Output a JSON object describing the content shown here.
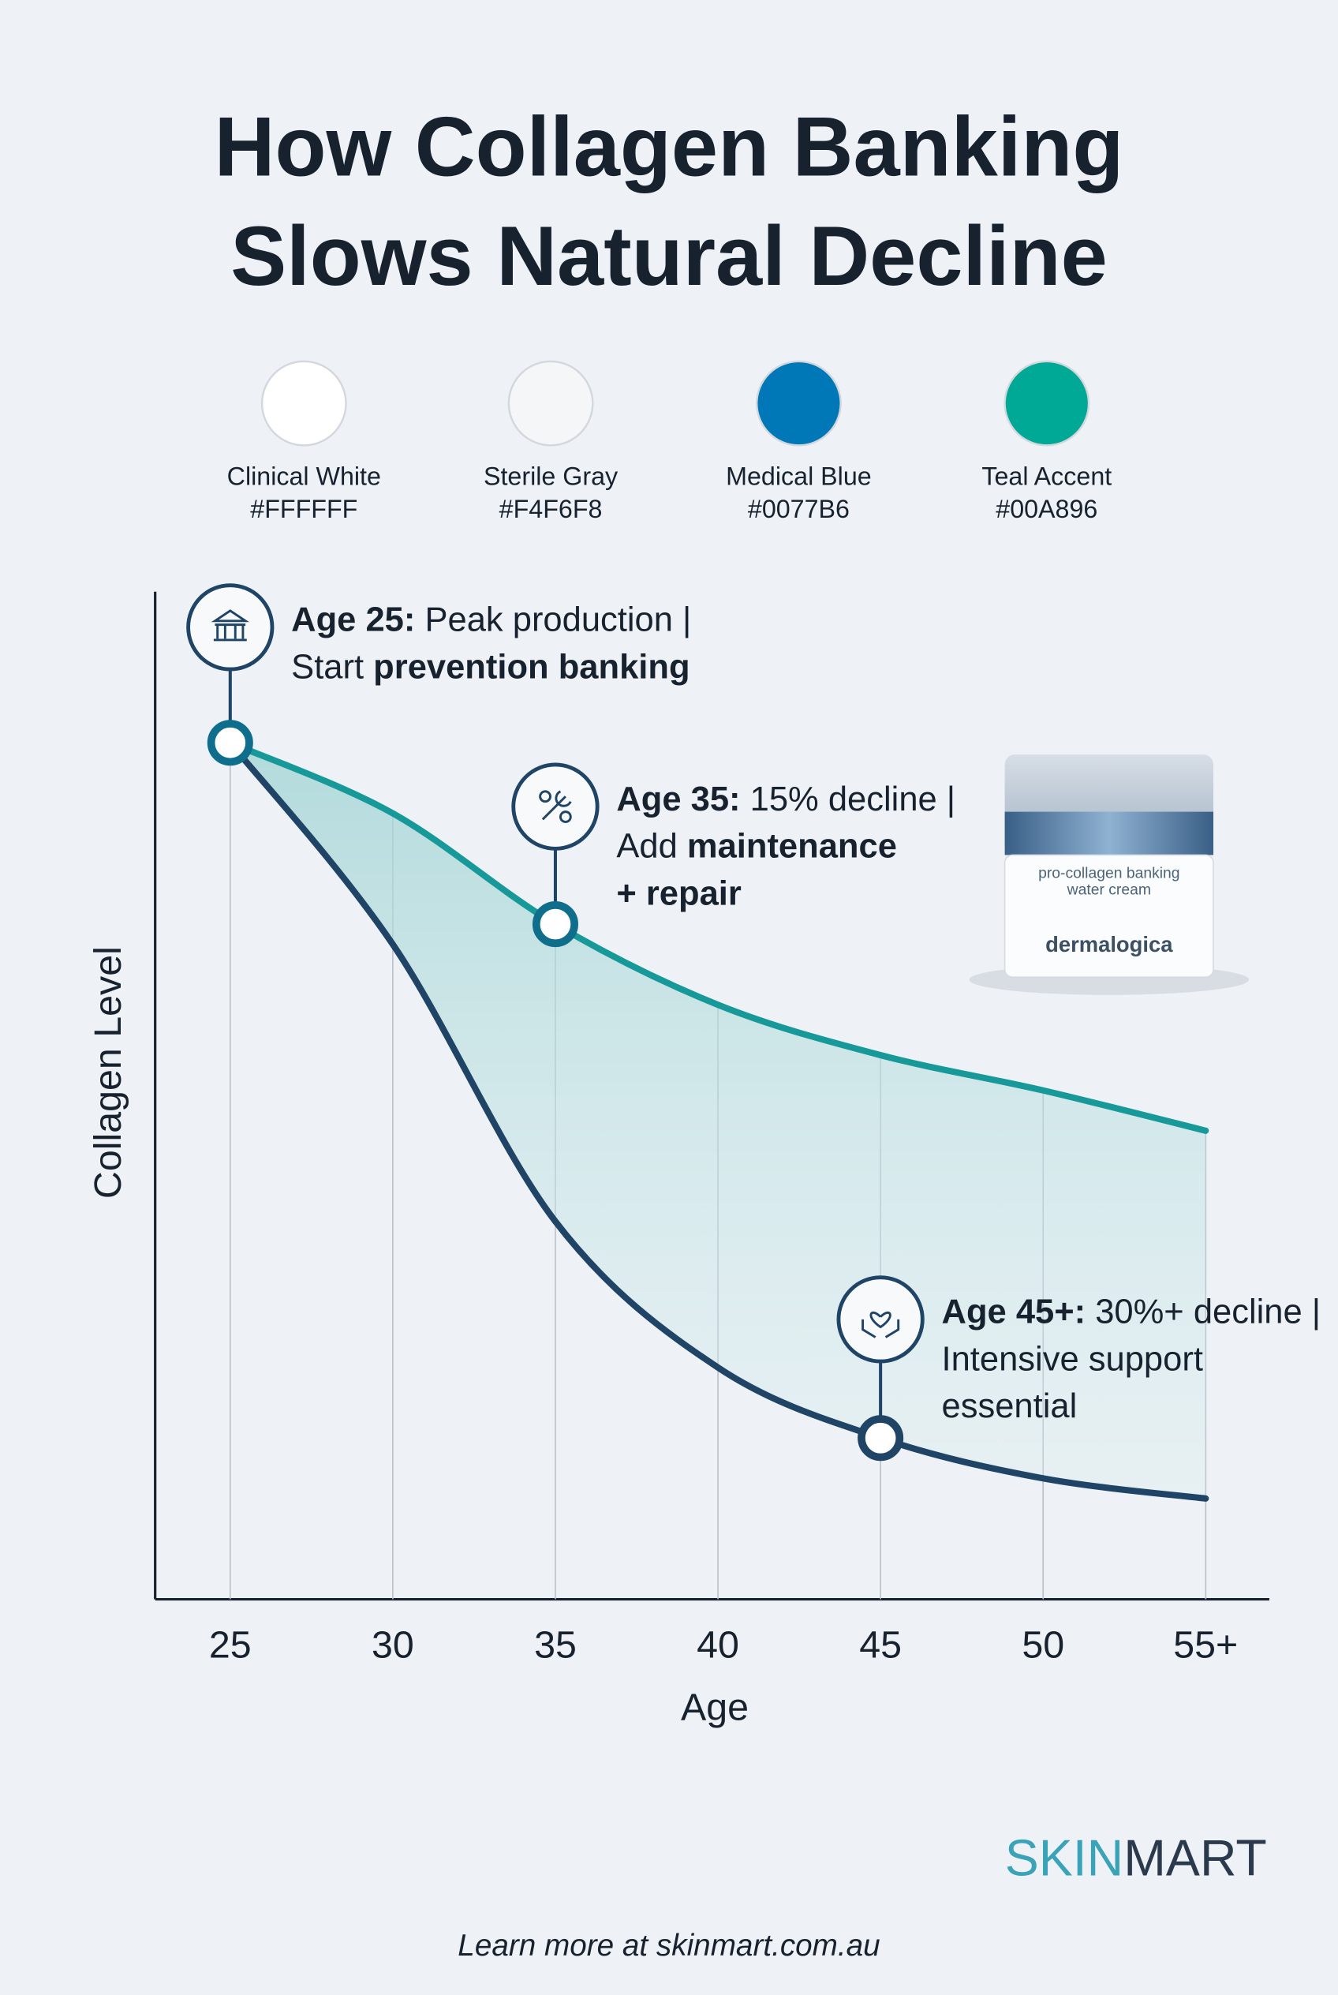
{
  "chart_data": {
    "type": "line",
    "title": [
      "How Collagen Banking",
      "Slows Natural Decline"
    ],
    "palette": [
      {
        "name": "Clinical White",
        "hex": "#FFFFFF"
      },
      {
        "name": "Sterile Gray",
        "hex": "#F4F6F8"
      },
      {
        "name": "Medical Blue",
        "hex": "#0077B6"
      },
      {
        "name": "Teal Accent",
        "hex": "#00A896"
      }
    ],
    "x_label": "Age",
    "y_label": "Collagen Level",
    "categories": [
      "25",
      "30",
      "35",
      "40",
      "45",
      "50",
      "55+"
    ],
    "series": [
      {
        "color": "#17999a",
        "values": [
          85,
          78,
          67,
          59,
          54,
          50.5,
          46.5
        ]
      },
      {
        "color": "#1f4466",
        "values": [
          85,
          65,
          37.5,
          23,
          16,
          12,
          10
        ]
      }
    ],
    "ylim": [
      0,
      100
    ],
    "grid": true,
    "annotations": [
      {
        "lines": [
          [
            {
              "text": "Age 25:",
              "bold": true
            },
            {
              "text": " Peak production |",
              "bold": false
            }
          ],
          [
            {
              "text": "Start ",
              "bold": false
            },
            {
              "text": "prevention banking",
              "bold": true
            }
          ]
        ]
      },
      {
        "lines": [
          [
            {
              "text": "Age 35:",
              "bold": true
            },
            {
              "text": " 15% decline |",
              "bold": false
            }
          ],
          [
            {
              "text": "Add ",
              "bold": false
            },
            {
              "text": "maintenance",
              "bold": true
            }
          ],
          [
            {
              "text": "+ repair",
              "bold": true
            }
          ]
        ]
      },
      {
        "lines": [
          [
            {
              "text": "Age 45+:",
              "bold": true
            },
            {
              "text": " 30%+ decline |",
              "bold": false
            }
          ],
          [
            {
              "text": "Intensive support",
              "bold": false
            }
          ],
          [
            {
              "text": "essential",
              "bold": false
            }
          ]
        ]
      }
    ],
    "product": {
      "line1": "pro-collagen banking",
      "line2": "water cream",
      "brand": "dermalogica"
    },
    "logo": {
      "part1": "SKIN",
      "part2": "MART"
    },
    "footer": "Learn more at skinmart.com.au"
  }
}
